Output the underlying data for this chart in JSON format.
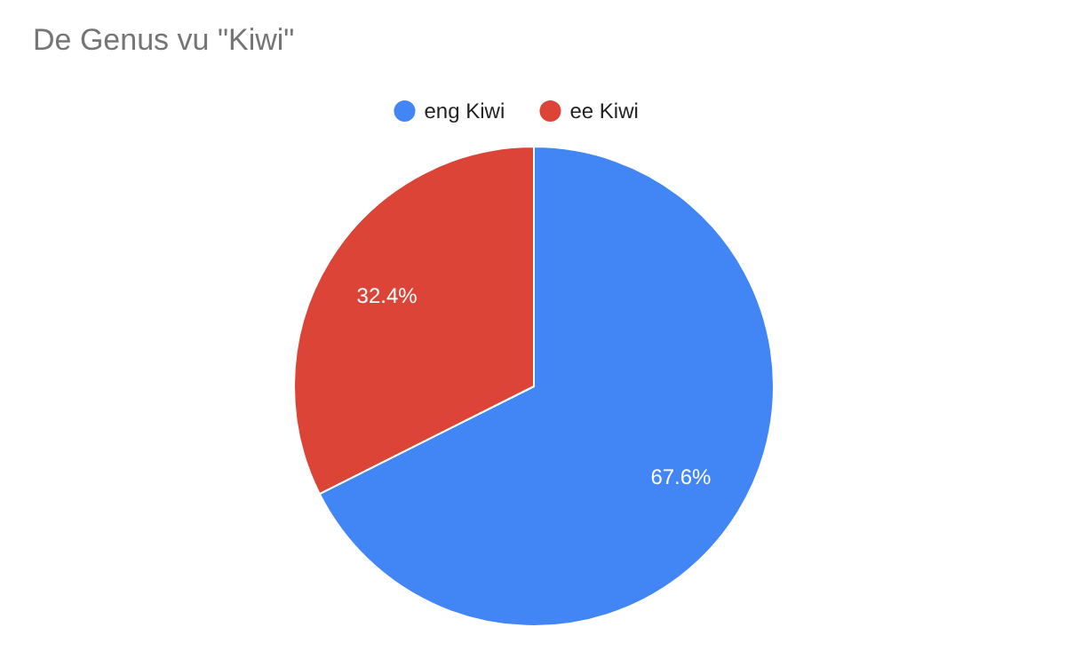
{
  "chart_data": {
    "type": "pie",
    "title": "De Genus vu \"Kiwi\"",
    "categories": [
      "eng Kiwi",
      "ee Kiwi"
    ],
    "values": [
      67.6,
      32.4
    ],
    "colors": [
      "#4285f4",
      "#db4437"
    ],
    "value_labels": [
      "67.6%",
      "32.4%"
    ],
    "legend": "top"
  }
}
